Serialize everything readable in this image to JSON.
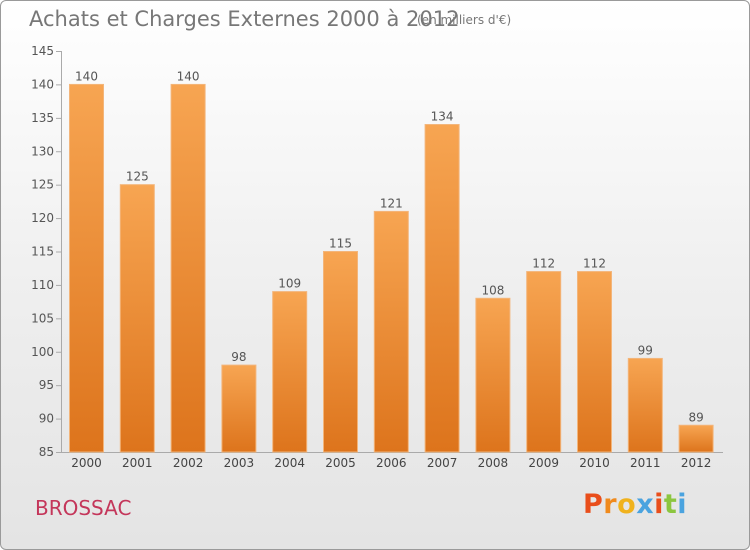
{
  "header": {
    "title": "Achats et Charges Externes 2000 à 2012",
    "subtitle": "(en milliers d'€)"
  },
  "footer": {
    "place": "BROSSAC",
    "logo": "Proxiti"
  },
  "colors": {
    "bar_light": "#f7a552",
    "bar_dark": "#dd741c",
    "title": "#777777",
    "place": "#c4365a",
    "logo_letters": [
      "#e94e1b",
      "#f08a1d",
      "#f0b21d",
      "#4aa3df",
      "#e94e1b",
      "#8cc63f",
      "#4aa3df"
    ]
  },
  "chart_data": {
    "type": "bar",
    "categories": [
      "2000",
      "2001",
      "2002",
      "2003",
      "2004",
      "2005",
      "2006",
      "2007",
      "2008",
      "2009",
      "2010",
      "2011",
      "2012"
    ],
    "values": [
      140,
      125,
      140,
      98,
      109,
      115,
      121,
      134,
      108,
      112,
      112,
      99,
      89
    ],
    "data_labels": [
      "140",
      "125",
      "140",
      "98",
      "109",
      "115",
      "121",
      "134",
      "108",
      "112",
      "112",
      "99",
      "89"
    ],
    "ylim": [
      85,
      145
    ],
    "yticks": [
      "85",
      "90",
      "95",
      "100",
      "105",
      "110",
      "115",
      "120",
      "125",
      "130",
      "135",
      "140",
      "145"
    ],
    "grid": false,
    "legend": "none"
  }
}
